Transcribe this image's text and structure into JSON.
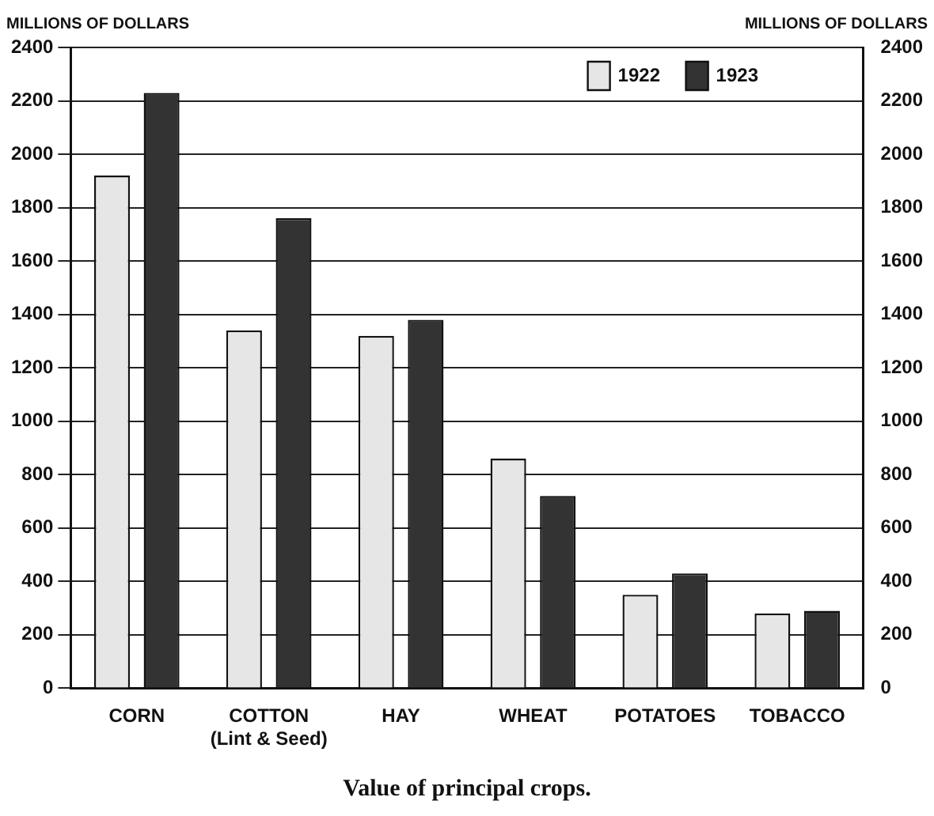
{
  "chart_data": {
    "type": "bar",
    "title": "Value of principal crops.",
    "ylabel": "MILLIONS OF DOLLARS",
    "y2label": "MILLIONS OF DOLLARS",
    "categories": [
      "CORN",
      "COTTON\n(Lint & Seed)",
      "HAY",
      "WHEAT",
      "POTATOES",
      "TOBACCO"
    ],
    "series": [
      {
        "name": "1922",
        "color": "#e6e6e6",
        "values": [
          1920,
          1340,
          1320,
          860,
          350,
          280
        ]
      },
      {
        "name": "1923",
        "color": "#333333",
        "values": [
          2230,
          1760,
          1380,
          720,
          430,
          290
        ]
      }
    ],
    "ylim": [
      0,
      2400
    ],
    "yticks": [
      0,
      200,
      400,
      600,
      800,
      1000,
      1200,
      1400,
      1600,
      1800,
      2000,
      2200,
      2400
    ],
    "y2lim": [
      0,
      2400
    ],
    "y2ticks": [
      0,
      200,
      400,
      600,
      800,
      1000,
      1200,
      1400,
      1600,
      1800,
      2000,
      2200,
      2400
    ],
    "grid": "y",
    "legend": "top right"
  }
}
